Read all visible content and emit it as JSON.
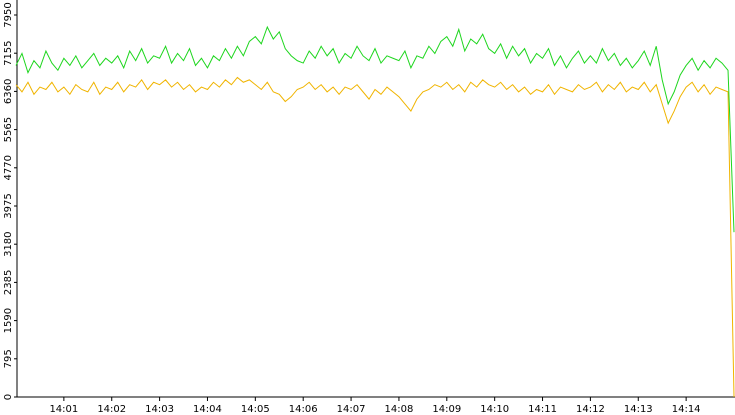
{
  "chart_data": {
    "type": "line",
    "categories": [
      null,
      null,
      null,
      null,
      null,
      null,
      null,
      null,
      "14:01",
      null,
      null,
      null,
      null,
      null,
      null,
      null,
      "14:02",
      null,
      null,
      null,
      null,
      null,
      null,
      null,
      "14:03",
      null,
      null,
      null,
      null,
      null,
      null,
      null,
      "14:04",
      null,
      null,
      null,
      null,
      null,
      null,
      null,
      "14:05",
      null,
      null,
      null,
      null,
      null,
      null,
      null,
      "14:06",
      null,
      null,
      null,
      null,
      null,
      null,
      null,
      "14:07",
      null,
      null,
      null,
      null,
      null,
      null,
      null,
      "14:08",
      null,
      null,
      null,
      null,
      null,
      null,
      null,
      "14:09",
      null,
      null,
      null,
      null,
      null,
      null,
      null,
      "14:10",
      null,
      null,
      null,
      null,
      null,
      null,
      null,
      "14:11",
      null,
      null,
      null,
      null,
      null,
      null,
      null,
      "14:12",
      null,
      null,
      null,
      null,
      null,
      null,
      null,
      "14:13",
      null,
      null,
      null,
      null,
      null,
      null,
      null,
      "14:14",
      null,
      null,
      null,
      null,
      null,
      null,
      null,
      null
    ],
    "series": [
      {
        "color": "#1ed61e",
        "values": [
          6900,
          7150,
          6750,
          7000,
          6850,
          7200,
          6950,
          6800,
          7050,
          6900,
          7100,
          6850,
          7000,
          7150,
          6900,
          7050,
          6950,
          7100,
          6850,
          7200,
          7000,
          7250,
          6950,
          7100,
          7050,
          7300,
          6950,
          7150,
          7000,
          7250,
          6900,
          7050,
          6850,
          7100,
          7000,
          7250,
          7050,
          7300,
          7100,
          7400,
          7500,
          7350,
          7700,
          7450,
          7600,
          7250,
          7100,
          7000,
          6950,
          7200,
          7050,
          7300,
          7100,
          7250,
          6950,
          7150,
          7050,
          7300,
          7100,
          7000,
          7250,
          6950,
          7100,
          7050,
          7000,
          7200,
          6850,
          7100,
          7050,
          7300,
          7150,
          7400,
          7500,
          7300,
          7650,
          7200,
          7450,
          7350,
          7550,
          7250,
          7150,
          7350,
          7050,
          7300,
          7100,
          7250,
          6950,
          7150,
          7050,
          7250,
          6900,
          7100,
          6850,
          7050,
          7200,
          6950,
          7100,
          6950,
          7250,
          7000,
          7150,
          6900,
          7050,
          6850,
          7000,
          7200,
          6900,
          7300,
          6600,
          6100,
          6350,
          6700,
          6900,
          7050,
          6800,
          7000,
          6850,
          7050,
          6950,
          6800,
          3430
        ]
      },
      {
        "color": "#f0b400",
        "values": [
          6500,
          6350,
          6550,
          6300,
          6450,
          6400,
          6550,
          6350,
          6450,
          6300,
          6500,
          6400,
          6350,
          6550,
          6300,
          6450,
          6400,
          6550,
          6350,
          6500,
          6450,
          6600,
          6400,
          6550,
          6500,
          6600,
          6450,
          6550,
          6400,
          6500,
          6350,
          6450,
          6400,
          6550,
          6450,
          6600,
          6500,
          6650,
          6550,
          6600,
          6500,
          6400,
          6550,
          6350,
          6300,
          6150,
          6250,
          6400,
          6450,
          6550,
          6400,
          6500,
          6350,
          6450,
          6300,
          6450,
          6400,
          6500,
          6350,
          6200,
          6400,
          6300,
          6450,
          6350,
          6250,
          6100,
          5950,
          6200,
          6350,
          6400,
          6500,
          6450,
          6550,
          6400,
          6500,
          6350,
          6550,
          6450,
          6600,
          6500,
          6450,
          6550,
          6400,
          6500,
          6350,
          6450,
          6300,
          6400,
          6350,
          6500,
          6300,
          6450,
          6400,
          6350,
          6500,
          6400,
          6450,
          6550,
          6350,
          6500,
          6400,
          6550,
          6350,
          6450,
          6400,
          6550,
          6350,
          6500,
          6100,
          5700,
          5950,
          6250,
          6450,
          6550,
          6350,
          6500,
          6300,
          6450,
          6400,
          6350,
          0
        ]
      }
    ],
    "ylim": [
      0,
      7950
    ],
    "yticks": [
      0,
      795,
      1590,
      2385,
      3180,
      3975,
      4770,
      5565,
      6360,
      7155,
      7950
    ],
    "grid": false
  }
}
